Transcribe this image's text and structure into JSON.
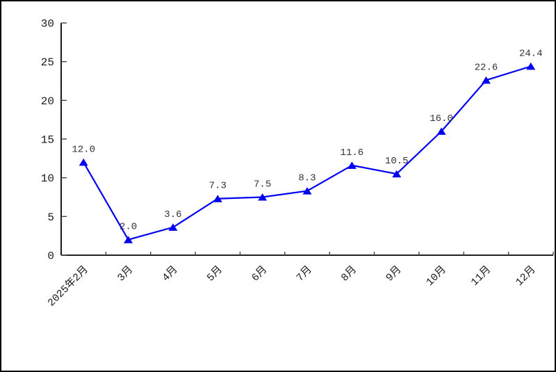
{
  "frame": {
    "background": "#ffffff",
    "border_color": "#000000"
  },
  "chart_data": {
    "type": "line",
    "title": "",
    "xlabel": "",
    "ylabel": "",
    "categories": [
      "2025年2月",
      "3月",
      "4月",
      "5月",
      "6月",
      "7月",
      "8月",
      "9月",
      "10月",
      "11月",
      "12月"
    ],
    "values": [
      12.0,
      2.0,
      3.6,
      7.3,
      7.5,
      8.3,
      11.6,
      10.5,
      16.0,
      22.6,
      24.4
    ],
    "point_labels": [
      "12.0",
      "2.0",
      "3.6",
      "7.3",
      "7.5",
      "8.3",
      "11.6",
      "10.5",
      "16.0",
      "22.6",
      "24.4"
    ],
    "ylim": [
      0,
      30
    ],
    "yticks": [
      0,
      5,
      10,
      15,
      20,
      25,
      30
    ],
    "ytick_labels": [
      "0",
      "5",
      "10",
      "15",
      "20",
      "25",
      "30"
    ],
    "grid": false,
    "legend": "none",
    "marker": "triangle-up",
    "line_color": "#0000F0",
    "marker_color": "#0000F0",
    "label_color": "#333333",
    "tick_text_color": "#1a1a1a",
    "axis_color": "#000000",
    "tick_color": "#444444"
  }
}
